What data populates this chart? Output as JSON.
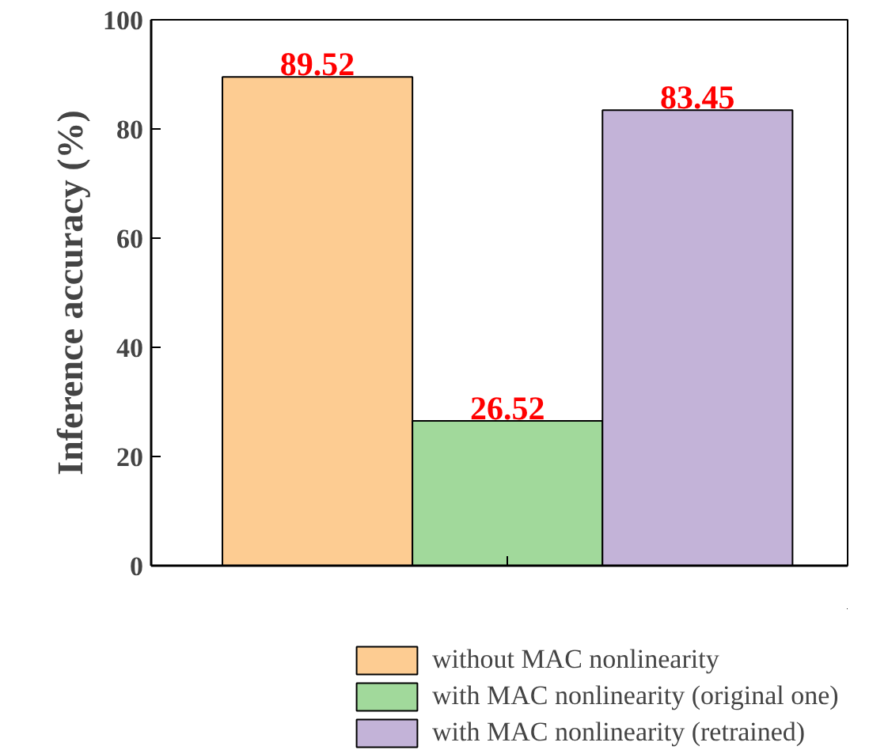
{
  "chart_data": {
    "type": "bar",
    "ylabel": "Inference accuracy (%)",
    "categories": [
      null,
      null,
      null
    ],
    "series": [
      {
        "name": "without MAC nonlinearity",
        "color": "#fdcc92",
        "values": [
          89.52,
          null,
          null
        ]
      },
      {
        "name": "with MAC nonlinearity (original one)",
        "color": "#a1d99b",
        "values": [
          null,
          26.52,
          null
        ]
      },
      {
        "name": "with MAC nonlinearity (retrained)",
        "color": "#c3b3d8",
        "values": [
          null,
          null,
          83.45
        ]
      }
    ],
    "ylim": [
      0,
      100
    ],
    "yticks": [
      0,
      20,
      40,
      60,
      80,
      100
    ],
    "data_labels": true,
    "grid": false,
    "legend": "bottom"
  }
}
